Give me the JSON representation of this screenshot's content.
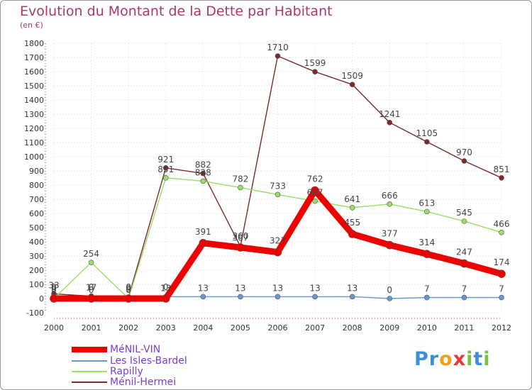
{
  "chart_data": {
    "type": "line",
    "title": "Evolution du Montant de la Dette par Habitant",
    "subtitle": "(en €)",
    "xlabel": "",
    "ylabel": "",
    "x": [
      "2000",
      "2001",
      "2002",
      "2003",
      "2004",
      "2005",
      "2006",
      "2007",
      "2008",
      "2009",
      "2010",
      "2011",
      "2012"
    ],
    "ylim": [
      -100,
      1800
    ],
    "yticks": [
      -100,
      0,
      100,
      200,
      300,
      400,
      500,
      600,
      700,
      800,
      900,
      1000,
      1100,
      1200,
      1300,
      1400,
      1500,
      1600,
      1700,
      1800
    ],
    "grid": true,
    "legend_position": "bottom-left",
    "series": [
      {
        "name": "Ménil-Hermei",
        "color": "#7a2a2a",
        "values": [
          33,
          17,
          9,
          921,
          882,
          367,
          1710,
          1599,
          1509,
          1241,
          1105,
          970,
          851
        ],
        "labels": [
          "33",
          "17",
          "9",
          "921",
          "882",
          "367",
          "1710",
          "1599",
          "1509",
          "1241",
          "1105",
          "970",
          "851"
        ]
      },
      {
        "name": "Rapilly",
        "color": "#99dd66",
        "values": [
          0,
          254,
          0,
          851,
          828,
          782,
          733,
          687,
          641,
          666,
          613,
          545,
          466
        ],
        "labels": [
          "0",
          "254",
          "0",
          "851",
          "828",
          "782",
          "733",
          "687",
          "641",
          "666",
          "613",
          "545",
          "466"
        ]
      },
      {
        "name": "Les Isles-Bardel",
        "color": "#6699cc",
        "values": [
          9,
          0,
          0,
          13,
          13,
          13,
          13,
          13,
          13,
          0,
          7,
          7,
          7
        ],
        "labels": [
          "9",
          "0",
          "0",
          "13",
          "13",
          "13",
          "13",
          "13",
          "13",
          "0",
          "7",
          "7",
          "7"
        ]
      },
      {
        "name": "MéNIL-VIN",
        "color": "#ee0000",
        "values": [
          0,
          0,
          0,
          0,
          391,
          360,
          327,
          762,
          455,
          377,
          314,
          247,
          174
        ],
        "labels": [
          "0",
          "0",
          "0",
          "0",
          "391",
          "360",
          "327",
          "762",
          "455",
          "377",
          "314",
          "247",
          "174"
        ]
      }
    ],
    "legend": [
      "MéNIL-VIN",
      "Les Isles-Bardel",
      "Rapilly",
      "Ménil-Hermei"
    ]
  },
  "logo": {
    "letters": [
      "P",
      "r",
      "o",
      "x",
      "i",
      "t",
      "i"
    ],
    "colors": [
      "#3b8ed8",
      "#3b8ed8",
      "#f0a020",
      "#e23a3a",
      "#76c043",
      "#3b8ed8",
      "#76c043"
    ]
  }
}
